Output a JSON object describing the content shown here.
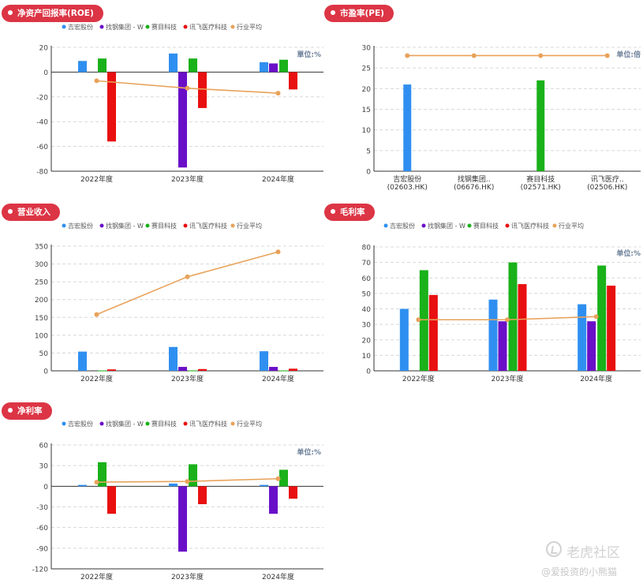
{
  "legend_labels": [
    "吉宏股份",
    "找钢集团 - W",
    "赛目科技",
    "讯飞医疗科技",
    "行业平均"
  ],
  "colors": [
    "#2f8ff0",
    "#6a0fc8",
    "#1ab11a",
    "#e81010",
    "#e8a25a"
  ],
  "chart_data": [
    {
      "id": "roe",
      "title": "净资产回报率(ROE)",
      "type": "bar",
      "unit_label": "單位:%",
      "categories": [
        "2022年度",
        "2023年度",
        "2024年度"
      ],
      "ylim": [
        -80,
        20
      ],
      "yticks": [
        20,
        0,
        -20,
        -40,
        -60,
        -80
      ],
      "series": [
        {
          "name": "吉宏股份",
          "values": [
            9,
            15,
            8
          ]
        },
        {
          "name": "找钢集团 - W",
          "values": [
            0,
            -77,
            7
          ]
        },
        {
          "name": "赛目科技",
          "values": [
            11,
            11,
            10
          ]
        },
        {
          "name": "讯飞医疗科技",
          "values": [
            -56,
            -29,
            -14
          ]
        }
      ],
      "average": [
        -7,
        -13,
        -17
      ]
    },
    {
      "id": "pe",
      "title": "市盈率(PE)",
      "type": "bar",
      "unit_label": "单位:倍",
      "categories": [
        "吉宏股份\n(02603.HK)",
        "找钢集团..\n(06676.HK)",
        "赛目科技\n(02571.HK)",
        "讯飞医疗..\n(02506.HK)"
      ],
      "ylim": [
        0,
        30
      ],
      "yticks": [
        30,
        25,
        20,
        15,
        10,
        5,
        0
      ],
      "values": [
        21,
        0,
        22,
        0
      ],
      "average": [
        28,
        28,
        28,
        28
      ]
    },
    {
      "id": "revenue",
      "title": "营业收入",
      "type": "bar",
      "unit_label": "",
      "categories": [
        "2022年度",
        "2023年度",
        "2024年度"
      ],
      "ylim": [
        0,
        350
      ],
      "yticks": [
        350,
        300,
        250,
        200,
        150,
        100,
        50,
        0
      ],
      "series": [
        {
          "name": "吉宏股份",
          "values": [
            54,
            67,
            55
          ]
        },
        {
          "name": "找钢集团 - W",
          "values": [
            0,
            11,
            11
          ]
        },
        {
          "name": "赛目科技",
          "values": [
            1,
            1,
            1
          ]
        },
        {
          "name": "讯飞医疗科技",
          "values": [
            4,
            5,
            6
          ]
        }
      ],
      "average": [
        158,
        264,
        334
      ]
    },
    {
      "id": "gross",
      "title": "毛利率",
      "type": "bar",
      "unit_label": "单位:%",
      "categories": [
        "2022年度",
        "2023年度",
        "2024年度"
      ],
      "ylim": [
        0,
        80
      ],
      "yticks": [
        80,
        70,
        60,
        50,
        40,
        30,
        20,
        10,
        0
      ],
      "series": [
        {
          "name": "吉宏股份",
          "values": [
            40,
            46,
            43
          ]
        },
        {
          "name": "找钢集团 - W",
          "values": [
            0,
            32,
            32
          ]
        },
        {
          "name": "赛目科技",
          "values": [
            65,
            70,
            68
          ]
        },
        {
          "name": "讯飞医疗科技",
          "values": [
            49,
            56,
            55
          ]
        }
      ],
      "average": [
        33,
        33,
        35
      ]
    },
    {
      "id": "net",
      "title": "净利率",
      "type": "bar",
      "unit_label": "单位:%",
      "categories": [
        "2022年度",
        "2023年度",
        "2024年度"
      ],
      "ylim": [
        -120,
        60
      ],
      "yticks": [
        60,
        30,
        0,
        -30,
        -60,
        -90,
        -120
      ],
      "series": [
        {
          "name": "吉宏股份",
          "values": [
            2,
            4,
            2
          ]
        },
        {
          "name": "找钢集团 - W",
          "values": [
            0,
            -95,
            -40
          ]
        },
        {
          "name": "赛目科技",
          "values": [
            35,
            32,
            24
          ]
        },
        {
          "name": "讯飞医疗科技",
          "values": [
            -40,
            -26,
            -18
          ]
        }
      ],
      "average": [
        6,
        7,
        11
      ]
    }
  ],
  "watermark": {
    "brand": "老虎社区",
    "author": "@爱投资的小熊猫"
  }
}
